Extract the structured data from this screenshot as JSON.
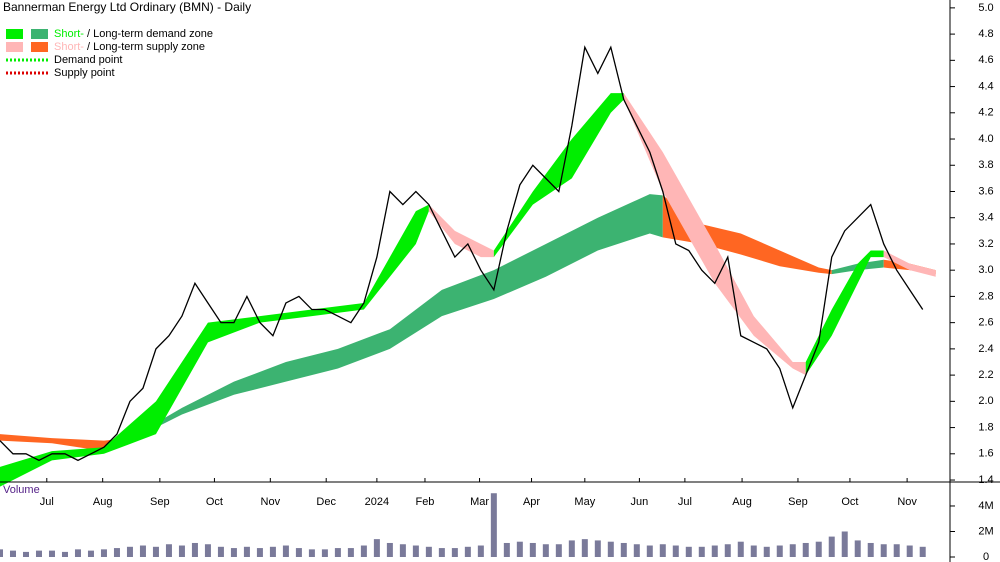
{
  "chart_data": [
    {
      "type": "line",
      "title": "Bannerman Energy Ltd Ordinary (BMN) - Daily",
      "legend": [
        {
          "short": "Short-",
          "long": "/ Long-term demand zone",
          "colors": [
            "#00ee00",
            "#3cb371"
          ]
        },
        {
          "short": "Short-",
          "long": "/ Long-term supply zone",
          "colors": [
            "#ffb6b6",
            "#ff6622"
          ]
        },
        {
          "label": "Demand point",
          "color": "#00ee00"
        },
        {
          "label": "Supply point",
          "color": "#dd0000"
        }
      ],
      "xlim": [
        0,
        73.1
      ],
      "xticks": [
        {
          "value": 3.6,
          "label": "Jul"
        },
        {
          "value": 7.9,
          "label": "Aug"
        },
        {
          "value": 12.3,
          "label": "Sep"
        },
        {
          "value": 16.5,
          "label": "Oct"
        },
        {
          "value": 20.8,
          "label": "Nov"
        },
        {
          "value": 25.1,
          "label": "Dec"
        },
        {
          "value": 29.0,
          "label": "2024"
        },
        {
          "value": 32.7,
          "label": "Feb"
        },
        {
          "value": 36.9,
          "label": "Mar"
        },
        {
          "value": 40.9,
          "label": "Apr"
        },
        {
          "value": 45,
          "label": "May"
        },
        {
          "value": 49.2,
          "label": "Jun"
        },
        {
          "value": 52.7,
          "label": "Jul"
        },
        {
          "value": 57.1,
          "label": "Aug"
        },
        {
          "value": 61.4,
          "label": "Sep"
        },
        {
          "value": 65.4,
          "label": "Oct"
        },
        {
          "value": 69.8,
          "label": "Nov"
        }
      ],
      "ylim": [
        1.385,
        5.06
      ],
      "yticks": [
        {
          "value": 1.4,
          "label": "1.4"
        },
        1.6,
        1.8,
        {
          "value": 2.0,
          "label": "2.0"
        },
        2.2,
        2.4,
        2.6,
        2.8,
        {
          "value": 3.0,
          "label": "3.0"
        },
        3.2,
        3.4,
        3.6,
        3.8,
        {
          "value": 4.0,
          "label": "4.0"
        },
        4.2,
        4.4,
        4.6,
        4.8,
        {
          "value": 5.0,
          "label": "5.0"
        }
      ],
      "zones": [
        {
          "color": "#ff6622",
          "x": [
            0,
            4,
            8,
            10
          ],
          "upper": [
            1.75,
            1.72,
            1.7,
            1.72
          ],
          "lower": [
            1.7,
            1.68,
            1.62,
            1.68
          ]
        },
        {
          "color": "#3cb371",
          "x": [
            10,
            14,
            18,
            22,
            26,
            30,
            34,
            38,
            42,
            46,
            50,
            51
          ],
          "upper": [
            1.72,
            1.95,
            2.15,
            2.3,
            2.4,
            2.55,
            2.85,
            3.0,
            3.2,
            3.4,
            3.58,
            3.57
          ],
          "lower": [
            1.7,
            1.9,
            2.05,
            2.15,
            2.25,
            2.4,
            2.65,
            2.78,
            2.95,
            3.15,
            3.28,
            3.25
          ]
        },
        {
          "color": "#ff6622",
          "x": [
            51,
            54,
            57,
            60,
            63,
            64
          ],
          "upper": [
            3.57,
            3.35,
            3.28,
            3.15,
            3.02,
            3.0
          ],
          "lower": [
            3.25,
            3.2,
            3.12,
            3.03,
            2.98,
            2.97
          ]
        },
        {
          "color": "#3cb371",
          "x": [
            64,
            66,
            68
          ],
          "upper": [
            3.0,
            3.05,
            3.08
          ],
          "lower": [
            2.97,
            3.0,
            3.02
          ]
        },
        {
          "color": "#ff6622",
          "x": [
            68,
            70,
            72
          ],
          "upper": [
            3.08,
            3.05,
            3.0
          ],
          "lower": [
            3.02,
            3.0,
            2.97
          ]
        },
        {
          "color": "#00ee00",
          "x": [
            0,
            4,
            8,
            12,
            16,
            20,
            24,
            28,
            32,
            33
          ],
          "upper": [
            1.5,
            1.62,
            1.65,
            2.0,
            2.6,
            2.65,
            2.7,
            2.75,
            3.45,
            3.5
          ],
          "lower": [
            1.35,
            1.55,
            1.6,
            1.75,
            2.45,
            2.6,
            2.65,
            2.7,
            3.2,
            3.45
          ]
        },
        {
          "color": "#ffb6b6",
          "x": [
            33,
            35,
            37,
            38
          ],
          "upper": [
            3.5,
            3.3,
            3.2,
            3.15
          ],
          "lower": [
            3.45,
            3.2,
            3.1,
            3.1
          ]
        },
        {
          "color": "#00ee00",
          "x": [
            38,
            41,
            44,
            47,
            48
          ],
          "upper": [
            3.15,
            3.6,
            4.0,
            4.35,
            4.35
          ],
          "lower": [
            3.1,
            3.5,
            3.7,
            4.2,
            4.3
          ]
        },
        {
          "color": "#ffb6b6",
          "x": [
            48,
            51,
            55,
            58,
            61,
            62
          ],
          "upper": [
            4.35,
            3.9,
            3.2,
            2.65,
            2.3,
            2.3
          ],
          "lower": [
            4.3,
            3.6,
            2.9,
            2.5,
            2.25,
            2.2
          ]
        },
        {
          "color": "#00ee00",
          "x": [
            62,
            64,
            66,
            67,
            68
          ],
          "upper": [
            2.3,
            2.7,
            3.05,
            3.15,
            3.15
          ],
          "lower": [
            2.2,
            2.5,
            2.9,
            3.1,
            3.1
          ]
        },
        {
          "color": "#ffb6b6",
          "x": [
            68,
            70,
            72
          ],
          "upper": [
            3.15,
            3.05,
            3.0
          ],
          "lower": [
            3.1,
            3.0,
            2.95
          ]
        }
      ],
      "series": [
        {
          "color": "#000000",
          "x": [
            0,
            1,
            2,
            3,
            4,
            5,
            6,
            7,
            8,
            9,
            10,
            11,
            12,
            13,
            14,
            15,
            16,
            17,
            18,
            19,
            20,
            21,
            22,
            23,
            24,
            25,
            26,
            27,
            28,
            29,
            30,
            31,
            32,
            33,
            34,
            35,
            36,
            37,
            38,
            39,
            40,
            41,
            42,
            43,
            44,
            45,
            46,
            47,
            48,
            49,
            50,
            51,
            52,
            53,
            54,
            55,
            56,
            57,
            58,
            59,
            60,
            61,
            62,
            63,
            64,
            65,
            66,
            67,
            68,
            69,
            70,
            71
          ],
          "values": [
            1.7,
            1.6,
            1.6,
            1.55,
            1.6,
            1.6,
            1.55,
            1.6,
            1.65,
            1.75,
            2.0,
            2.1,
            2.4,
            2.5,
            2.65,
            2.9,
            2.75,
            2.6,
            2.6,
            2.8,
            2.6,
            2.5,
            2.75,
            2.8,
            2.7,
            2.7,
            2.65,
            2.6,
            2.75,
            3.1,
            3.6,
            3.5,
            3.6,
            3.5,
            3.3,
            3.1,
            3.2,
            3.0,
            2.85,
            3.3,
            3.65,
            3.8,
            3.7,
            3.6,
            4.1,
            4.7,
            4.5,
            4.7,
            4.3,
            4.1,
            3.9,
            3.6,
            3.2,
            3.15,
            3.0,
            2.9,
            3.1,
            2.5,
            2.45,
            2.4,
            2.25,
            1.95,
            2.2,
            2.45,
            3.1,
            3.3,
            3.4,
            3.5,
            3.2,
            3.0,
            2.85,
            2.7
          ]
        }
      ]
    },
    {
      "type": "bar",
      "title": "Volume",
      "xlim": [
        0,
        73.1
      ],
      "ylim": [
        0,
        5880000
      ],
      "yticks": [
        0,
        {
          "value": 2000000,
          "label": "2M"
        },
        {
          "value": 4000000,
          "label": "4M"
        }
      ],
      "color": "#7a7a9a",
      "x": [
        0,
        1,
        2,
        3,
        4,
        5,
        6,
        7,
        8,
        9,
        10,
        11,
        12,
        13,
        14,
        15,
        16,
        17,
        18,
        19,
        20,
        21,
        22,
        23,
        24,
        25,
        26,
        27,
        28,
        29,
        30,
        31,
        32,
        33,
        34,
        35,
        36,
        37,
        38,
        39,
        40,
        41,
        42,
        43,
        44,
        45,
        46,
        47,
        48,
        49,
        50,
        51,
        52,
        53,
        54,
        55,
        56,
        57,
        58,
        59,
        60,
        61,
        62,
        63,
        64,
        65,
        66,
        67,
        68,
        69,
        70,
        71
      ],
      "values": [
        600000,
        500000,
        400000,
        500000,
        500000,
        400000,
        600000,
        500000,
        600000,
        700000,
        800000,
        900000,
        800000,
        1000000,
        900000,
        1100000,
        1000000,
        800000,
        700000,
        800000,
        700000,
        800000,
        900000,
        700000,
        600000,
        600000,
        700000,
        700000,
        900000,
        1400000,
        1100000,
        1000000,
        900000,
        800000,
        700000,
        700000,
        800000,
        900000,
        5000000,
        1100000,
        1200000,
        1100000,
        1000000,
        1000000,
        1300000,
        1400000,
        1300000,
        1200000,
        1100000,
        1000000,
        900000,
        1000000,
        900000,
        800000,
        800000,
        900000,
        1000000,
        1200000,
        900000,
        800000,
        900000,
        1000000,
        1100000,
        1200000,
        1600000,
        2000000,
        1300000,
        1100000,
        1000000,
        1000000,
        900000,
        800000
      ]
    }
  ]
}
